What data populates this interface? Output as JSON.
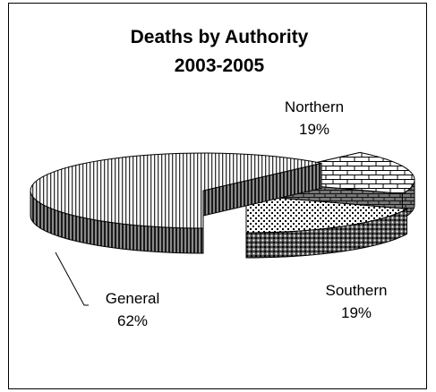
{
  "chart_data": {
    "type": "pie",
    "style": "3d-exploded",
    "title_lines": [
      "Deaths by Authority",
      "2003-2005"
    ],
    "legend": "none",
    "slices": [
      {
        "name": "General",
        "value": 62,
        "pct_label": "62%",
        "fill": "vertical-stripes"
      },
      {
        "name": "Northern",
        "value": 19,
        "pct_label": "19%",
        "fill": "bricks"
      },
      {
        "name": "Southern",
        "value": 19,
        "pct_label": "19%",
        "fill": "dots"
      }
    ],
    "colors": {
      "outline": "#000000",
      "background": "#ffffff"
    }
  }
}
